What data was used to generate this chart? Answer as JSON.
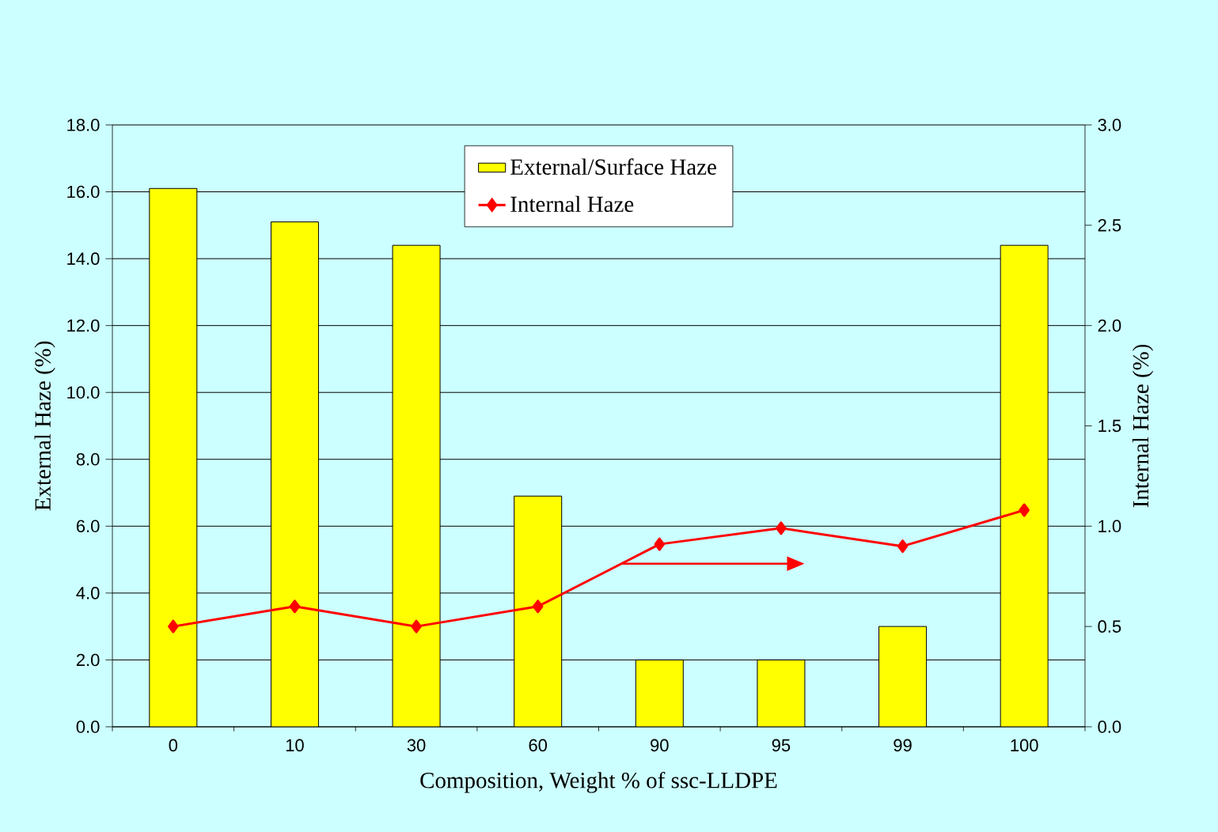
{
  "chart_data": {
    "type": "bar",
    "xlabel": "Composition, Weight % of ssc-LLDPE",
    "ylabel": "External Haze (%)",
    "y2label": "Internal Haze (%)",
    "categories": [
      "0",
      "10",
      "30",
      "60",
      "90",
      "95",
      "99",
      "100"
    ],
    "series": [
      {
        "name": "External/Surface Haze",
        "color": "#ffff00",
        "values": [
          16.1,
          15.1,
          14.4,
          6.9,
          2.0,
          2.0,
          3.0,
          14.4
        ]
      },
      {
        "name": "Internal Haze",
        "type": "line",
        "axis": "y2",
        "color": "#ff0000",
        "marker": "diamond",
        "values": [
          0.5,
          0.6,
          0.5,
          0.6,
          0.91,
          0.99,
          0.9,
          1.08
        ]
      }
    ],
    "ylim": [
      0,
      18
    ],
    "yticks": [
      {
        "value": 0,
        "label": "0.0"
      },
      {
        "value": 2,
        "label": "2.0"
      },
      {
        "value": 4,
        "label": "4.0"
      },
      {
        "value": 6,
        "label": "6.0"
      },
      {
        "value": 8,
        "label": "8.0"
      },
      {
        "value": 10,
        "label": "10.0"
      },
      {
        "value": 12,
        "label": "12.0"
      },
      {
        "value": 14,
        "label": "14.0"
      },
      {
        "value": 16,
        "label": "16.0"
      },
      {
        "value": 18,
        "label": "18.0"
      }
    ],
    "y2lim": [
      0,
      3
    ],
    "y2ticks": [
      {
        "value": 0,
        "label": "0.0"
      },
      {
        "value": 0.5,
        "label": "0.5"
      },
      {
        "value": 1,
        "label": "1.0"
      },
      {
        "value": 1.5,
        "label": "1.5"
      },
      {
        "value": 2,
        "label": "2.0"
      },
      {
        "value": 2.5,
        "label": "2.5"
      },
      {
        "value": 3,
        "label": "3.0"
      }
    ],
    "grid": "y",
    "legend": "top"
  }
}
